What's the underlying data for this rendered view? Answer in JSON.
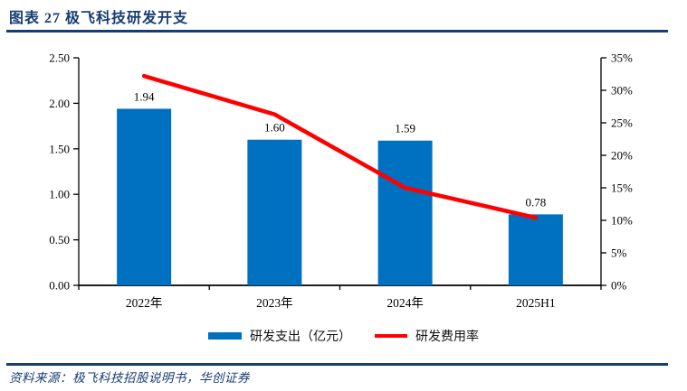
{
  "header": {
    "title": "图表 27  极飞科技研发开支"
  },
  "footer": {
    "source": "资料来源：极飞科技招股说明书，华创证券"
  },
  "colors": {
    "accent": "#173E72",
    "bar": "#0070C0",
    "line": "#FF0000",
    "axis": "#000000",
    "text": "#000000"
  },
  "chart_data": {
    "type": "bar",
    "subtype": "bar+line dual-axis combo",
    "title": "极飞科技研发开支",
    "categories": [
      "2022年",
      "2023年",
      "2024年",
      "2025H1"
    ],
    "series": [
      {
        "name": "研发支出（亿元）",
        "kind": "bar",
        "axis": "left",
        "unit": "亿元",
        "values": [
          1.94,
          1.6,
          1.59,
          0.78
        ],
        "data_labels": [
          "1.94",
          "1.60",
          "1.59",
          "0.78"
        ],
        "color": "#0070C0"
      },
      {
        "name": "研发费用率",
        "kind": "line",
        "axis": "right",
        "unit": "%",
        "values": [
          32.2,
          26.3,
          15.0,
          10.4
        ],
        "color": "#FF0000"
      }
    ],
    "left_axis": {
      "min": 0,
      "max": 2.5,
      "step": 0.5,
      "tick_labels": [
        "0.00",
        "0.50",
        "1.00",
        "1.50",
        "2.00",
        "2.50"
      ]
    },
    "right_axis": {
      "min": 0,
      "max": 35,
      "step": 5,
      "tick_labels": [
        "0%",
        "5%",
        "10%",
        "15%",
        "20%",
        "25%",
        "30%",
        "35%"
      ]
    },
    "grid": false,
    "legend_position": "bottom"
  }
}
